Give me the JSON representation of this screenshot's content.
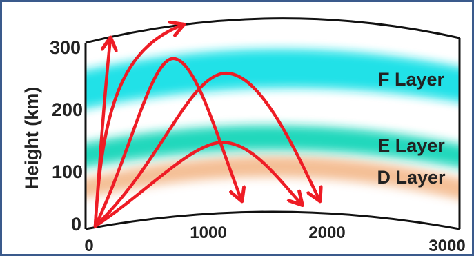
{
  "y_axis": {
    "label": "Height (km)",
    "ticks": [
      "300",
      "200",
      "100",
      "0"
    ]
  },
  "x_axis": {
    "ticks": [
      "0",
      "1000",
      "2000",
      "3000"
    ]
  },
  "layers": [
    {
      "name": "F Layer",
      "color": "#18e0e6"
    },
    {
      "name": "E Layer",
      "color": "#19d6b9"
    },
    {
      "name": "D Layer",
      "color": "#f3b88a"
    }
  ],
  "ray_color": "#ee1c25",
  "frame_color": "#3a5a8c"
}
